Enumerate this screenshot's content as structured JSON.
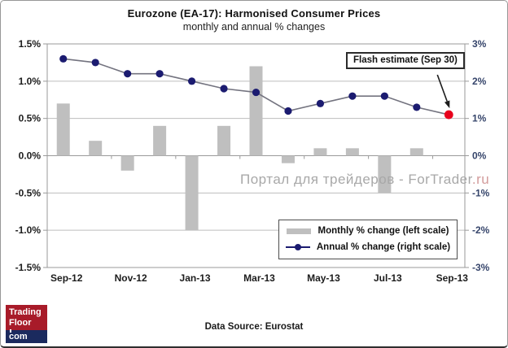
{
  "title": "Eurozone (EA-17): Harmonised Consumer Prices",
  "subtitle": "monthly and annual % changes",
  "annotation": {
    "label": "Flash estimate (Sep 30)"
  },
  "watermark": {
    "text": "Портал для трейдеров - ForTrader",
    "suffix": ".ru"
  },
  "footer": {
    "source": "Data Source: Eurostat"
  },
  "logo": {
    "line1": "Trading",
    "line2": "Floor",
    "line3": "com"
  },
  "chart_data": {
    "type": "combo-bar-line",
    "title": "Eurozone (EA-17): Harmonised Consumer Prices",
    "subtitle": "monthly and annual % changes",
    "categories": [
      "Sep-12",
      "Oct-12",
      "Nov-12",
      "Dec-12",
      "Jan-13",
      "Feb-13",
      "Mar-13",
      "Apr-13",
      "May-13",
      "Jun-13",
      "Jul-13",
      "Aug-13",
      "Sep-13"
    ],
    "series": [
      {
        "name": "Monthly % change (left scale)",
        "type": "bar",
        "axis": "left",
        "color": "#bfbfbf",
        "values": [
          0.7,
          0.2,
          -0.2,
          0.4,
          -1.0,
          0.4,
          1.2,
          -0.1,
          0.1,
          0.1,
          -0.5,
          0.1,
          null
        ]
      },
      {
        "name": "Annual % change (right scale)",
        "type": "line",
        "axis": "right",
        "color": "#1b1b70",
        "line_color": "#73737f",
        "last_point_color": "#e8001c",
        "last_point_note": "Flash estimate (Sep 30)",
        "values": [
          2.6,
          2.5,
          2.2,
          2.2,
          2.0,
          1.8,
          1.7,
          1.2,
          1.4,
          1.6,
          1.6,
          1.3,
          1.1
        ]
      }
    ],
    "left_axis": {
      "range": [
        -1.5,
        1.5
      ],
      "tick_values": [
        1.5,
        1.0,
        0.5,
        0.0,
        -0.5,
        -1.0,
        -1.5
      ],
      "tick_labels": [
        "1.5%",
        "1.0%",
        "0.5%",
        "0.0%",
        "-0.5%",
        "-1.0%",
        "-1.5%"
      ]
    },
    "right_axis": {
      "range": [
        -3,
        3
      ],
      "tick_values": [
        3,
        2,
        1,
        0,
        -1,
        -2,
        -3
      ],
      "tick_labels": [
        "3%",
        "2%",
        "1%",
        "0%",
        "-1%",
        "-2%",
        "-3%"
      ]
    },
    "x_tick_labels": [
      "Sep-12",
      "Nov-12",
      "Jan-13",
      "Mar-13",
      "May-13",
      "Jul-13",
      "Sep-13"
    ],
    "grid": true,
    "legend_position": "inside-bottom-right",
    "colors": {
      "grid": "#bdbdbd",
      "axis_line": "#9a9a9a",
      "left_label": "#1c1c1c",
      "right_label": "#36456b",
      "x_label": "#1c1c1c",
      "arrow": "#1c1c1c"
    }
  }
}
